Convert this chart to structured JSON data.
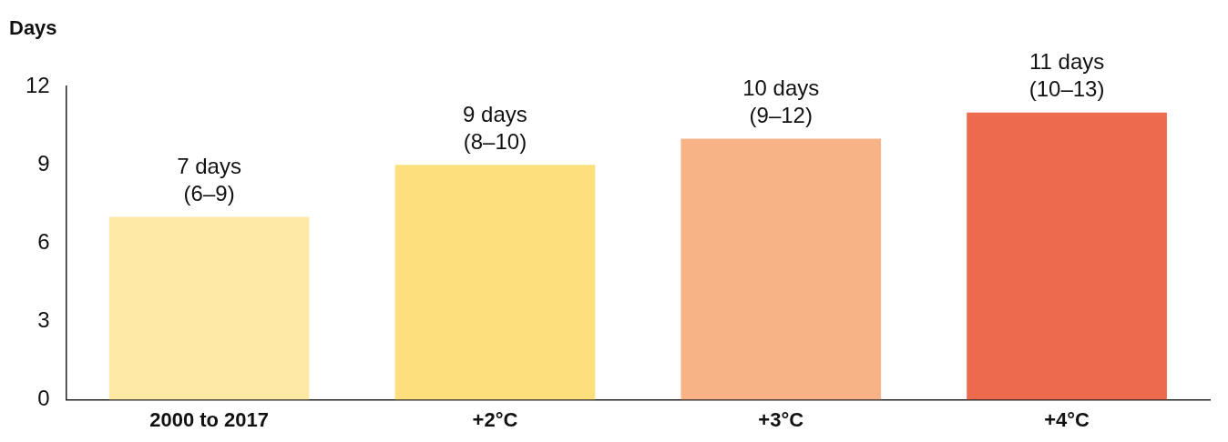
{
  "chart_data": {
    "type": "bar",
    "ylabel": "Days",
    "categories": [
      "2000 to 2017",
      "+2°C",
      "+3°C",
      "+4°C"
    ],
    "values": [
      7,
      9,
      10,
      11
    ],
    "colors": [
      "#fde8a6",
      "#fde07d",
      "#f7b386",
      "#ec6b4f"
    ],
    "value_labels": [
      "7 days\n(6–9)",
      "9 days\n(8–10)",
      "10 days\n(9–12)",
      "11 days\n(10–13)"
    ],
    "ylim": [
      0,
      12
    ],
    "yticks": [
      0,
      3,
      6,
      9,
      12
    ],
    "grid": false,
    "legend": false
  }
}
